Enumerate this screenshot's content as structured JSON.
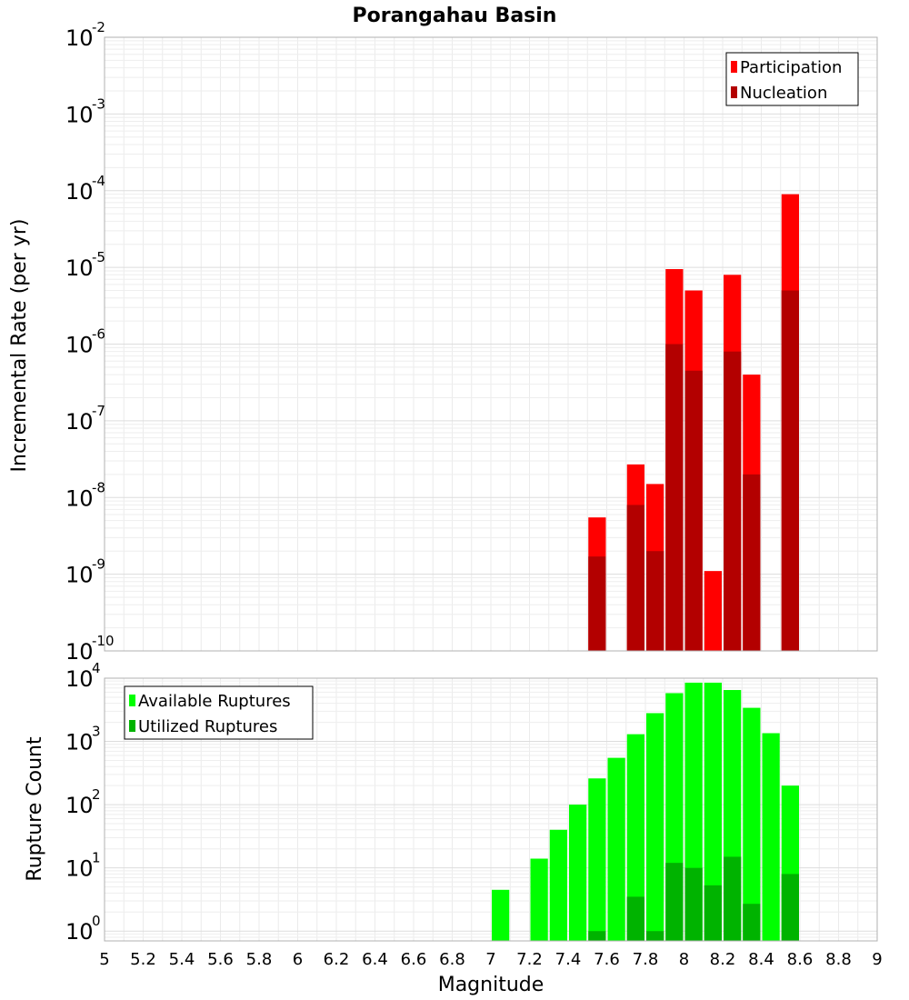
{
  "chart_data": [
    {
      "type": "bar",
      "title": "Porangahau Basin",
      "xlabel": "",
      "ylabel": "Incremental Rate (per yr)",
      "yscale": "log",
      "ylim": [
        1e-10,
        0.01
      ],
      "xlim": [
        5,
        9
      ],
      "ytick_exponents": [
        "-10",
        "-9",
        "-8",
        "-7",
        "-6",
        "-5",
        "-4",
        "-3",
        "-2"
      ],
      "legend": {
        "position": "top-right"
      },
      "grid": true,
      "series": [
        {
          "name": "Participation",
          "color": "#ff0000",
          "points": [
            {
              "x": 7.55,
              "y": 5.5e-09
            },
            {
              "x": 7.75,
              "y": 2.7e-08
            },
            {
              "x": 7.85,
              "y": 1.5e-08
            },
            {
              "x": 7.95,
              "y": 9.5e-06
            },
            {
              "x": 8.05,
              "y": 5e-06
            },
            {
              "x": 8.15,
              "y": 1.1e-09
            },
            {
              "x": 8.25,
              "y": 8e-06
            },
            {
              "x": 8.35,
              "y": 4e-07
            },
            {
              "x": 8.55,
              "y": 9e-05
            }
          ]
        },
        {
          "name": "Nucleation",
          "color": "#b30000",
          "points": [
            {
              "x": 7.55,
              "y": 1.7e-09
            },
            {
              "x": 7.75,
              "y": 8e-09
            },
            {
              "x": 7.85,
              "y": 2e-09
            },
            {
              "x": 7.95,
              "y": 1e-06
            },
            {
              "x": 8.05,
              "y": 4.5e-07
            },
            {
              "x": 8.25,
              "y": 8e-07
            },
            {
              "x": 8.35,
              "y": 2e-08
            },
            {
              "x": 8.55,
              "y": 5e-06
            }
          ]
        }
      ]
    },
    {
      "type": "bar",
      "title": "",
      "xlabel": "Magnitude",
      "ylabel": "Rupture Count",
      "yscale": "log",
      "ylim": [
        0.7,
        10000
      ],
      "xlim": [
        5,
        9
      ],
      "ytick_exponents": [
        "0",
        "1",
        "2",
        "3",
        "4"
      ],
      "xticks": [
        "5",
        "5.2",
        "5.4",
        "5.6",
        "5.8",
        "6",
        "6.2",
        "6.4",
        "6.6",
        "6.8",
        "7",
        "7.2",
        "7.4",
        "7.6",
        "7.8",
        "8",
        "8.2",
        "8.4",
        "8.6",
        "8.8",
        "9"
      ],
      "legend": {
        "position": "top-left"
      },
      "grid": true,
      "series": [
        {
          "name": "Available Ruptures",
          "color": "#00ff00",
          "points": [
            {
              "x": 7.05,
              "y": 4.5
            },
            {
              "x": 7.25,
              "y": 14
            },
            {
              "x": 7.35,
              "y": 40
            },
            {
              "x": 7.45,
              "y": 100
            },
            {
              "x": 7.55,
              "y": 260
            },
            {
              "x": 7.65,
              "y": 550
            },
            {
              "x": 7.75,
              "y": 1300
            },
            {
              "x": 7.85,
              "y": 2800
            },
            {
              "x": 7.95,
              "y": 5800
            },
            {
              "x": 8.05,
              "y": 8500
            },
            {
              "x": 8.15,
              "y": 8500
            },
            {
              "x": 8.25,
              "y": 6500
            },
            {
              "x": 8.35,
              "y": 3400
            },
            {
              "x": 8.45,
              "y": 1350
            },
            {
              "x": 8.55,
              "y": 200
            }
          ]
        },
        {
          "name": "Utilized Ruptures",
          "color": "#00b300",
          "points": [
            {
              "x": 7.55,
              "y": 1
            },
            {
              "x": 7.75,
              "y": 3.5
            },
            {
              "x": 7.85,
              "y": 1
            },
            {
              "x": 7.95,
              "y": 12
            },
            {
              "x": 8.05,
              "y": 10
            },
            {
              "x": 8.15,
              "y": 5.3
            },
            {
              "x": 8.25,
              "y": 15
            },
            {
              "x": 8.35,
              "y": 2.7
            },
            {
              "x": 8.55,
              "y": 8
            }
          ]
        }
      ]
    }
  ]
}
